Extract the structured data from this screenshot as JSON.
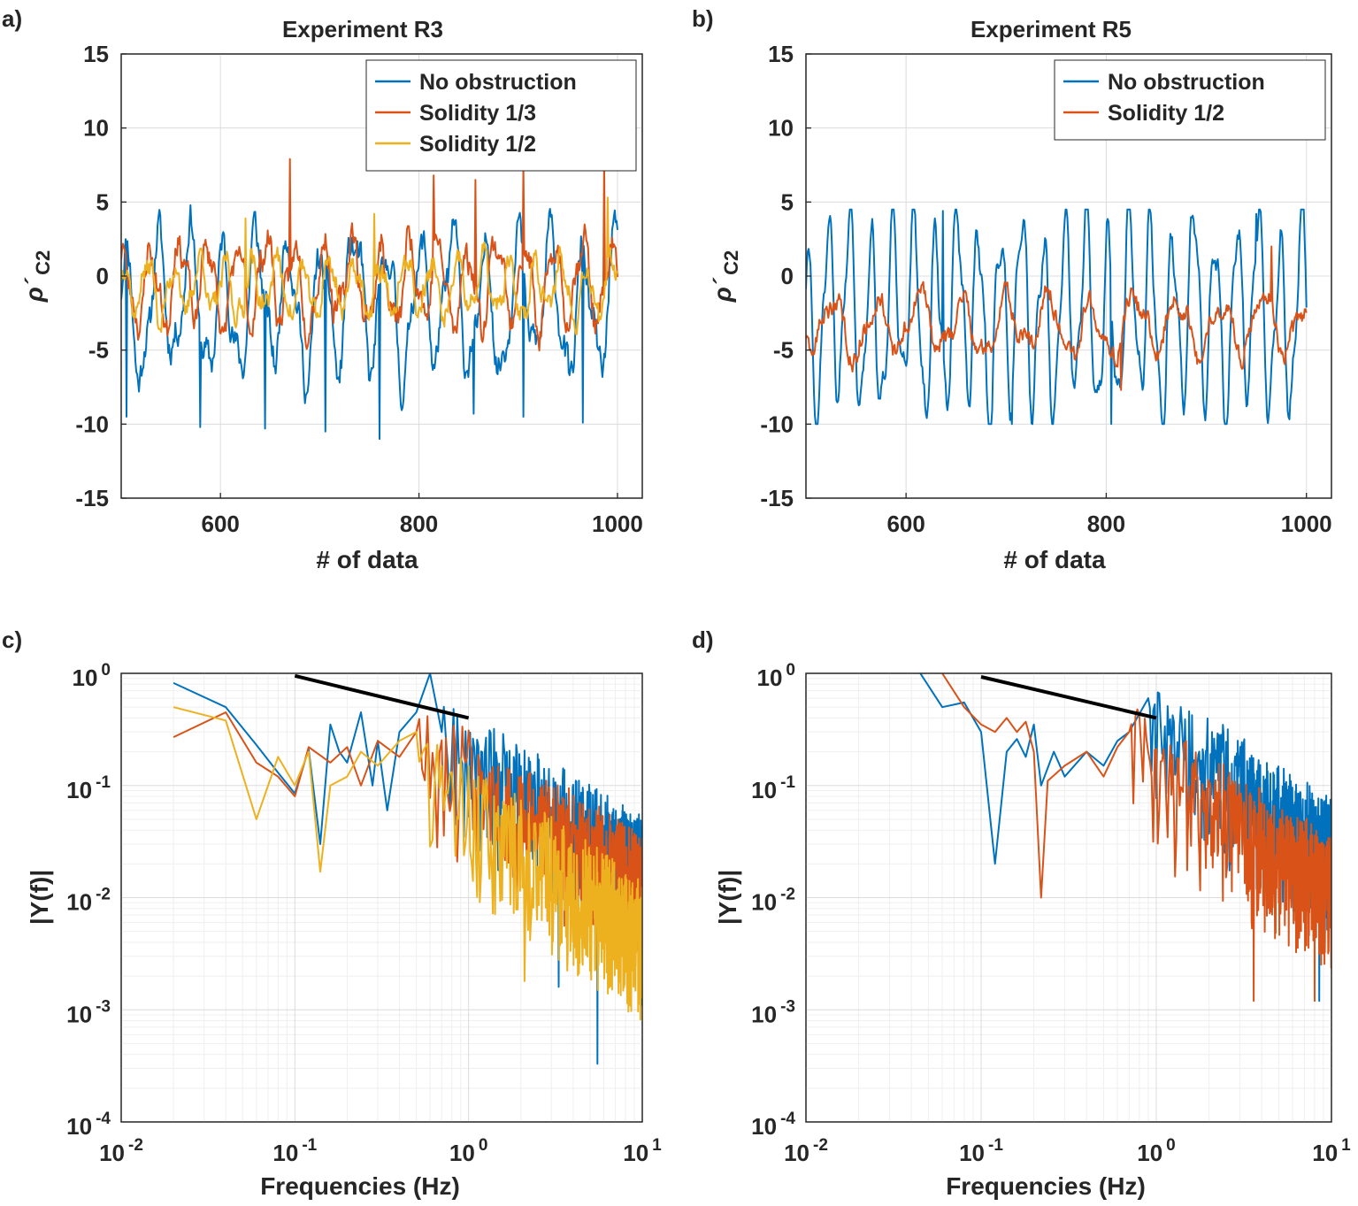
{
  "colors": {
    "blue": "#0072BD",
    "orange": "#D95319",
    "yellow": "#EDB120",
    "black": "#000000"
  },
  "chart_data": [
    {
      "panel_label": "a)",
      "type": "line",
      "title": "Experiment R3",
      "xlabel": "# of data",
      "ylabel": "ρ´",
      "ylabel_sub": "C2",
      "xlim": [
        500,
        1025
      ],
      "ylim": [
        -15,
        15
      ],
      "xticks": [
        "600",
        "800",
        "1000"
      ],
      "xtick_values": [
        600,
        800,
        1000
      ],
      "yticks": [
        "15",
        "10",
        "5",
        "0",
        "-5",
        "-10",
        "-15"
      ],
      "ytick_values": [
        15,
        10,
        5,
        0,
        -5,
        -10,
        -15
      ],
      "grid": true,
      "legend_position": "top-right",
      "series": [
        {
          "name": "No obstruction",
          "color": "#0072BD",
          "x_start": 500,
          "x_end": 1000,
          "points": 560,
          "seed": 11,
          "period": 33,
          "amplitude": 4.2,
          "offset": -2.0,
          "noise": 1.6,
          "min": -11,
          "max": 5,
          "spikes": [
            [
              505,
              -9.5
            ],
            [
              580,
              -10.2
            ],
            [
              645,
              -10.3
            ],
            [
              706,
              -10.5
            ],
            [
              760,
              -11
            ],
            [
              855,
              -9.3
            ],
            [
              905,
              -9.5
            ],
            [
              965,
              -9.9
            ]
          ]
        },
        {
          "name": "Solidity 1/3",
          "color": "#D95319",
          "x_start": 500,
          "x_end": 1000,
          "points": 560,
          "seed": 23,
          "period": 29,
          "amplitude": 2.6,
          "offset": -0.5,
          "noise": 1.4,
          "min": -6,
          "max": 8,
          "spikes": [
            [
              670,
              7.9
            ],
            [
              905,
              7.5
            ],
            [
              987,
              7.9
            ],
            [
              815,
              6.8
            ],
            [
              857,
              6.5
            ]
          ]
        },
        {
          "name": "Solidity 1/2",
          "color": "#EDB120",
          "x_start": 500,
          "x_end": 1000,
          "points": 560,
          "seed": 37,
          "period": 26,
          "amplitude": 1.8,
          "offset": -0.8,
          "noise": 1.2,
          "min": -5,
          "max": 6,
          "spikes": [
            [
              990,
              5.3
            ],
            [
              625,
              3.9
            ],
            [
              755,
              4.2
            ]
          ]
        }
      ]
    },
    {
      "panel_label": "b)",
      "type": "line",
      "title": "Experiment R5",
      "xlabel": "# of data",
      "ylabel": "ρ´",
      "ylabel_sub": "C2",
      "xlim": [
        500,
        1025
      ],
      "ylim": [
        -15,
        15
      ],
      "xticks": [
        "600",
        "800",
        "1000"
      ],
      "xtick_values": [
        600,
        800,
        1000
      ],
      "yticks": [
        "15",
        "10",
        "5",
        "0",
        "-5",
        "-10",
        "-15"
      ],
      "ytick_values": [
        15,
        10,
        5,
        0,
        -5,
        -10,
        -15
      ],
      "grid": true,
      "legend_position": "top-right",
      "series": [
        {
          "name": "No obstruction",
          "color": "#0072BD",
          "x_start": 500,
          "x_end": 1000,
          "points": 560,
          "seed": 51,
          "period": 21.5,
          "amplitude": 6.2,
          "offset": -2.6,
          "noise": 0.9,
          "min": -10,
          "max": 4.5,
          "spikes": [
            [
              637,
              4.4
            ],
            [
              706,
              -10
            ],
            [
              950,
              4.2
            ],
            [
              805,
              -10
            ]
          ]
        },
        {
          "name": "Solidity 1/2",
          "color": "#D95319",
          "x_start": 500,
          "x_end": 1000,
          "points": 560,
          "seed": 63,
          "period": 43,
          "amplitude": 1.8,
          "offset": -3.3,
          "noise": 1.0,
          "min": -8,
          "max": 2.5,
          "spikes": [
            [
              965,
              2.0
            ],
            [
              815,
              -7.7
            ]
          ]
        }
      ]
    },
    {
      "panel_label": "c)",
      "type": "line",
      "scale": "loglog",
      "xlabel": "Frequencies (Hz)",
      "ylabel": "|Y(f)|",
      "xlim_log10": [
        -2,
        1
      ],
      "ylim_log10": [
        -4,
        0
      ],
      "xticks": [
        {
          "base": "10",
          "exp": "-2"
        },
        {
          "base": "10",
          "exp": "-1"
        },
        {
          "base": "10",
          "exp": "0"
        },
        {
          "base": "10",
          "exp": "1"
        }
      ],
      "xtick_values_log10": [
        -2,
        -1,
        0,
        1
      ],
      "yticks": [
        {
          "base": "10",
          "exp": "0"
        },
        {
          "base": "10",
          "exp": "-1"
        },
        {
          "base": "10",
          "exp": "-2"
        },
        {
          "base": "10",
          "exp": "-3"
        },
        {
          "base": "10",
          "exp": "-4"
        }
      ],
      "ytick_values_log10": [
        0,
        -1,
        -2,
        -3,
        -4
      ],
      "grid": true,
      "reference_line": {
        "x": [
          0.1,
          1.0
        ],
        "y": [
          0.95,
          0.4
        ],
        "color": "#000000"
      },
      "series": [
        {
          "name": "No obstruction",
          "color": "#0072BD",
          "low_freq": [
            [
              0.02,
              0.82
            ],
            [
              0.04,
              0.5
            ],
            [
              0.06,
              0.23
            ],
            [
              0.08,
              0.13
            ],
            [
              0.1,
              0.085
            ],
            [
              0.12,
              0.21
            ],
            [
              0.14,
              0.03
            ],
            [
              0.16,
              0.35
            ],
            [
              0.18,
              0.2
            ],
            [
              0.2,
              0.16
            ],
            [
              0.24,
              0.45
            ],
            [
              0.28,
              0.1
            ],
            [
              0.3,
              0.25
            ],
            [
              0.34,
              0.06
            ],
            [
              0.4,
              0.3
            ],
            [
              0.5,
              0.45
            ],
            [
              0.6,
              1.0
            ],
            [
              0.7,
              0.3
            ]
          ],
          "df": 0.02,
          "f_end": 10,
          "hf_level": 0.6,
          "hf_slope": -1.0,
          "seed": 71,
          "deep_dips": [
            [
              5.5,
              0.00033
            ],
            [
              3.3,
              0.0016
            ],
            [
              9.8,
              0.0011
            ]
          ]
        },
        {
          "name": "Solidity 1/3",
          "color": "#D95319",
          "low_freq": [
            [
              0.02,
              0.27
            ],
            [
              0.04,
              0.45
            ],
            [
              0.06,
              0.16
            ],
            [
              0.08,
              0.12
            ],
            [
              0.1,
              0.08
            ],
            [
              0.12,
              0.22
            ],
            [
              0.16,
              0.16
            ],
            [
              0.2,
              0.22
            ],
            [
              0.24,
              0.1
            ],
            [
              0.3,
              0.25
            ],
            [
              0.4,
              0.18
            ],
            [
              0.5,
              0.3
            ]
          ],
          "df": 0.02,
          "f_end": 10,
          "hf_level": 0.45,
          "hf_slope": -0.9,
          "seed": 83,
          "deep_dips": [
            [
              9.5,
              0.0028
            ]
          ]
        },
        {
          "name": "Solidity 1/2",
          "color": "#EDB120",
          "low_freq": [
            [
              0.02,
              0.5
            ],
            [
              0.04,
              0.38
            ],
            [
              0.06,
              0.05
            ],
            [
              0.08,
              0.18
            ],
            [
              0.1,
              0.1
            ],
            [
              0.12,
              0.2
            ],
            [
              0.14,
              0.017
            ],
            [
              0.16,
              0.1
            ],
            [
              0.2,
              0.12
            ],
            [
              0.24,
              0.2
            ],
            [
              0.3,
              0.15
            ],
            [
              0.4,
              0.25
            ],
            [
              0.5,
              0.3
            ]
          ],
          "df": 0.02,
          "f_end": 10,
          "hf_level": 0.3,
          "hf_slope": -1.1,
          "seed": 97,
          "deep_dips": [
            [
              2.1,
              0.0018
            ],
            [
              6.5,
              0.0018
            ]
          ]
        }
      ]
    },
    {
      "panel_label": "d)",
      "type": "line",
      "scale": "loglog",
      "xlabel": "Frequencies (Hz)",
      "ylabel": "|Y(f)|",
      "xlim_log10": [
        -2,
        1
      ],
      "ylim_log10": [
        -4,
        0
      ],
      "xticks": [
        {
          "base": "10",
          "exp": "-2"
        },
        {
          "base": "10",
          "exp": "-1"
        },
        {
          "base": "10",
          "exp": "0"
        },
        {
          "base": "10",
          "exp": "1"
        }
      ],
      "xtick_values_log10": [
        -2,
        -1,
        0,
        1
      ],
      "yticks": [
        {
          "base": "10",
          "exp": "0"
        },
        {
          "base": "10",
          "exp": "-1"
        },
        {
          "base": "10",
          "exp": "-2"
        },
        {
          "base": "10",
          "exp": "-3"
        },
        {
          "base": "10",
          "exp": "-4"
        }
      ],
      "ytick_values_log10": [
        0,
        -1,
        -2,
        -3,
        -4
      ],
      "grid": true,
      "reference_line": {
        "x": [
          0.1,
          1.0
        ],
        "y": [
          0.93,
          0.4
        ],
        "color": "#000000"
      },
      "series": [
        {
          "name": "No obstruction",
          "color": "#0072BD",
          "low_freq": [
            [
              0.045,
              1.0
            ],
            [
              0.06,
              0.5
            ],
            [
              0.08,
              0.55
            ],
            [
              0.1,
              0.3
            ],
            [
              0.12,
              0.02
            ],
            [
              0.14,
              0.2
            ],
            [
              0.16,
              0.26
            ],
            [
              0.18,
              0.18
            ],
            [
              0.2,
              0.35
            ],
            [
              0.22,
              0.1
            ],
            [
              0.26,
              0.2
            ],
            [
              0.3,
              0.12
            ],
            [
              0.4,
              0.2
            ],
            [
              0.5,
              0.15
            ],
            [
              0.6,
              0.25
            ],
            [
              0.7,
              0.3
            ],
            [
              0.9,
              0.6
            ]
          ],
          "df": 0.02,
          "f_end": 10,
          "hf_level": 0.75,
          "hf_slope": -1.05,
          "seed": 111,
          "deep_dips": [
            [
              8.5,
              0.0012
            ]
          ]
        },
        {
          "name": "Solidity 1/2",
          "color": "#D95319",
          "low_freq": [
            [
              0.06,
              1.0
            ],
            [
              0.08,
              0.5
            ],
            [
              0.1,
              0.35
            ],
            [
              0.12,
              0.3
            ],
            [
              0.14,
              0.4
            ],
            [
              0.16,
              0.3
            ],
            [
              0.18,
              0.37
            ],
            [
              0.2,
              0.2
            ],
            [
              0.22,
              0.01
            ],
            [
              0.24,
              0.11
            ],
            [
              0.3,
              0.15
            ],
            [
              0.4,
              0.2
            ],
            [
              0.5,
              0.12
            ],
            [
              0.6,
              0.22
            ],
            [
              0.7,
              0.3
            ]
          ],
          "df": 0.02,
          "f_end": 10,
          "hf_level": 0.42,
          "hf_slope": -1.0,
          "seed": 127,
          "deep_dips": [
            [
              3.6,
              0.0012
            ],
            [
              8.0,
              0.0012
            ]
          ]
        }
      ]
    }
  ]
}
